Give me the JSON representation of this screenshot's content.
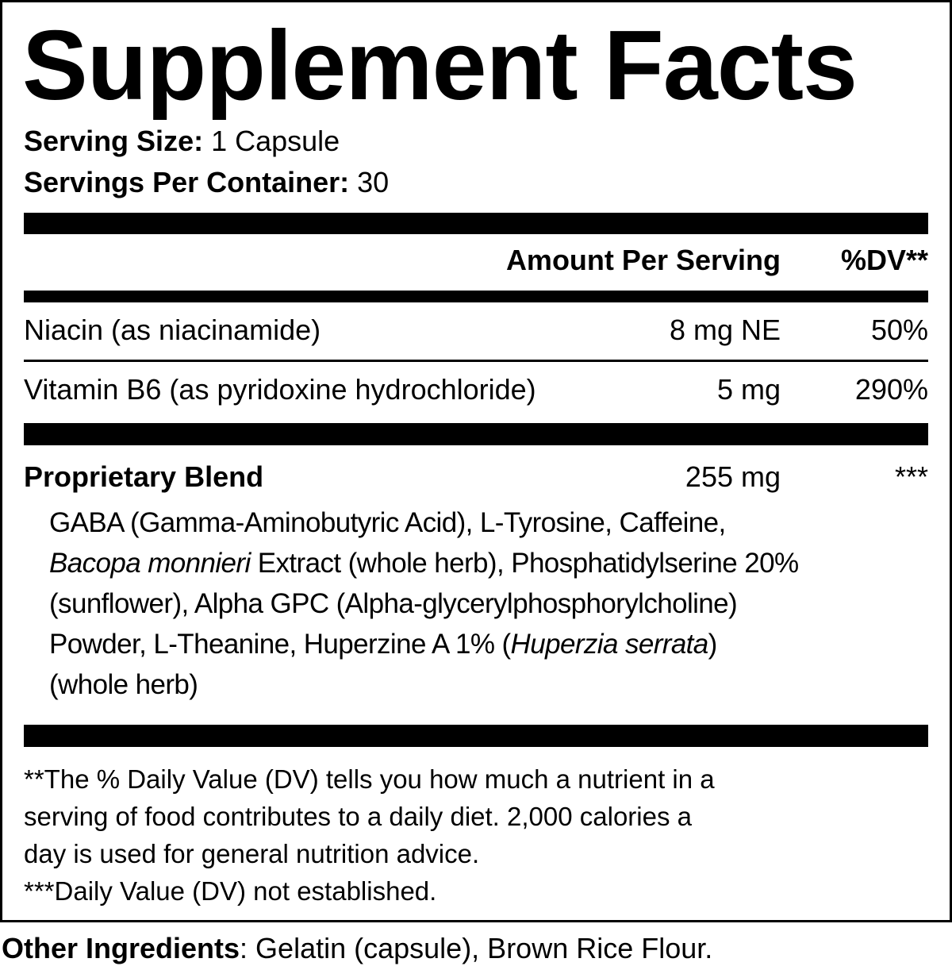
{
  "title": "Supplement Facts",
  "serving": {
    "size_label": "Serving Size:",
    "size_value": "1 Capsule",
    "per_container_label": "Servings Per Container:",
    "per_container_value": "30"
  },
  "header": {
    "amount": "Amount Per Serving",
    "dv": "%DV**"
  },
  "nutrients": [
    {
      "name": "Niacin (as niacinamide)",
      "amount": "8 mg NE",
      "dv": "50%"
    },
    {
      "name": "Vitamin B6 (as pyridoxine hydrochloride)",
      "amount": "5 mg",
      "dv": "290%"
    }
  ],
  "blend": {
    "name": "Proprietary Blend",
    "amount": "255 mg",
    "dv": "***",
    "lines": [
      [
        {
          "text": "GABA (Gamma-Aminobutyric Acid), L-Tyrosine, Caffeine,",
          "italic": false
        }
      ],
      [
        {
          "text": "Bacopa monnieri",
          "italic": true
        },
        {
          "text": " Extract (whole herb), Phosphatidylserine 20%",
          "italic": false
        }
      ],
      [
        {
          "text": "(sunflower), Alpha GPC (Alpha-glycerylphosphorylcholine)",
          "italic": false
        }
      ],
      [
        {
          "text": "Powder, L-Theanine, Huperzine A 1% (",
          "italic": false
        },
        {
          "text": "Huperzia serrata",
          "italic": true
        },
        {
          "text": ")",
          "italic": false
        }
      ],
      [
        {
          "text": "(whole herb)",
          "italic": false
        }
      ]
    ]
  },
  "footnotes": [
    "**The % Daily Value (DV) tells you how much a nutrient in a",
    "serving of food contributes to a daily diet. 2,000 calories a",
    "day is used for general nutrition advice.",
    "***Daily Value (DV) not established."
  ],
  "other_ingredients": {
    "label": "Other Ingredients",
    "value": ": Gelatin (capsule), Brown Rice Flour."
  }
}
